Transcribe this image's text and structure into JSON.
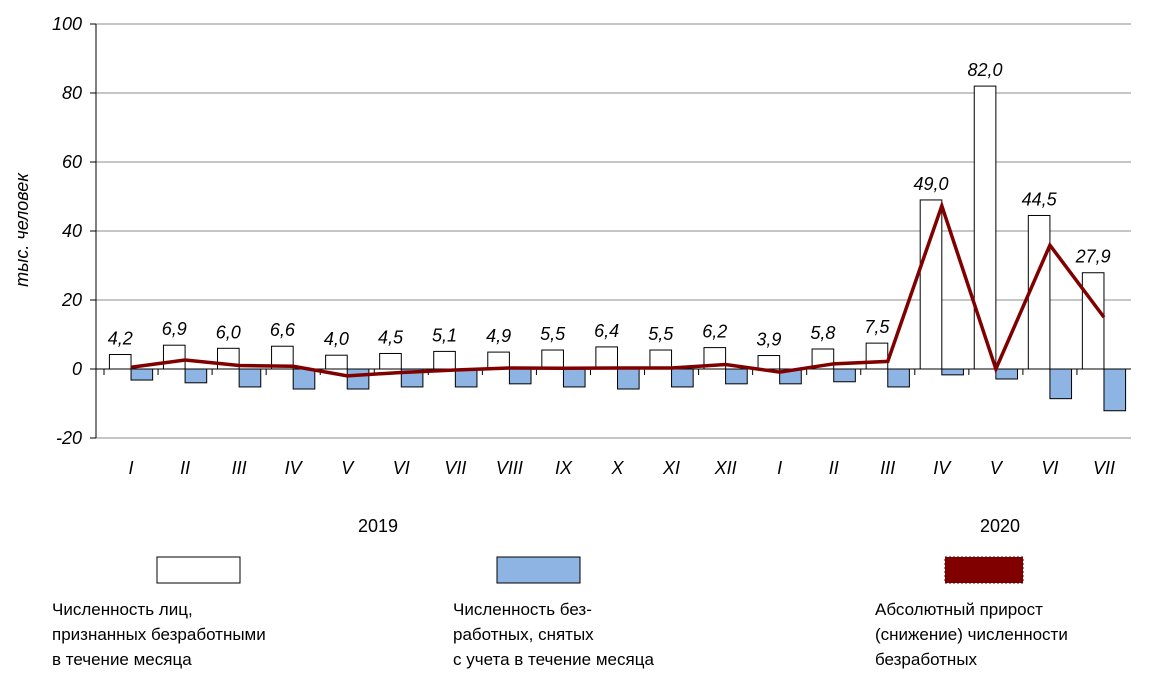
{
  "chart_data": {
    "type": "bar_line",
    "y_label": "тыс. человек",
    "categories": [
      "I",
      "II",
      "III",
      "IV",
      "V",
      "VI",
      "VII",
      "VIII",
      "IX",
      "X",
      "XI",
      "XII",
      "I",
      "II",
      "III",
      "IV",
      "V",
      "VI",
      "VII"
    ],
    "groups": [
      "2019",
      "2020"
    ],
    "ylim": [
      -20,
      100
    ],
    "yticks": [
      -20,
      0,
      20,
      40,
      60,
      80,
      100
    ],
    "grid": true,
    "series": [
      {
        "name": "Численность лиц,\nпризнанных безработными\nв течение месяца",
        "kind": "bar",
        "color": "#ffffff",
        "values": [
          4.2,
          6.9,
          6.0,
          6.6,
          4.0,
          4.5,
          5.1,
          4.9,
          5.5,
          6.4,
          5.5,
          6.2,
          3.9,
          5.8,
          7.5,
          49.0,
          82.0,
          44.5,
          27.9
        ],
        "value_labels": [
          "4,2",
          "6,9",
          "6,0",
          "6,6",
          "4,0",
          "4,5",
          "5,1",
          "4,9",
          "5,5",
          "6,4",
          "5,5",
          "6,2",
          "3,9",
          "5,8",
          "7,5",
          "49,0",
          "82,0",
          "44,5",
          "27,9"
        ]
      },
      {
        "name": "Численность без-\nработных, снятых\nс учета в течение месяца",
        "kind": "bar",
        "color": "#8db4e2",
        "values": [
          -3.2,
          -4.0,
          -5.2,
          -5.8,
          -5.8,
          -5.2,
          -5.2,
          -4.3,
          -5.2,
          -5.8,
          -5.2,
          -4.3,
          -4.3,
          -3.7,
          -5.2,
          -1.7,
          -2.9,
          -8.6,
          -12.1
        ]
      },
      {
        "name": "Абсолютный прирост\n(снижение) численности\nбезработных",
        "kind": "line",
        "color": "#800000",
        "values": [
          0.5,
          2.6,
          1.0,
          0.8,
          -2.0,
          -1.0,
          -0.3,
          0.3,
          0.2,
          0.3,
          0.3,
          1.3,
          -0.9,
          1.5,
          2.2,
          47.3,
          0.0,
          35.9,
          15.0
        ]
      }
    ]
  }
}
